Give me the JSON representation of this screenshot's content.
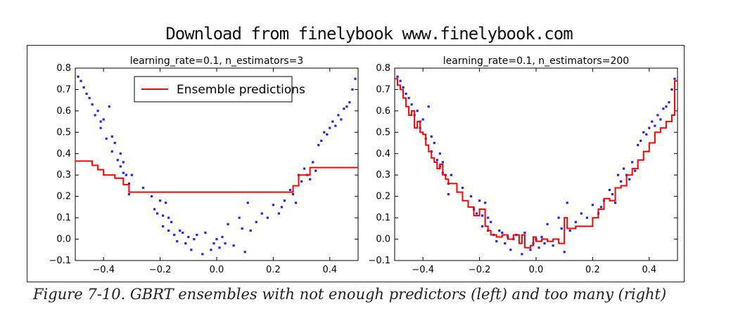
{
  "header": {
    "watermark": "Download from finelybook www.finelybook.com"
  },
  "caption": "Figure 7-10. GBRT ensembles with not enough predictors (left) and too many (right)",
  "colors": {
    "points": "#2222ff",
    "prediction": "#ff0000"
  },
  "chart_data": [
    {
      "type": "line",
      "title": "learning_rate=0.1, n_estimators=3",
      "xlabel": "",
      "ylabel": "",
      "xlim": [
        -0.5,
        0.5
      ],
      "ylim": [
        -0.1,
        0.8
      ],
      "xticks": [
        "−0.4",
        "−0.2",
        "0.0",
        "0.2",
        "0.4"
      ],
      "yticks": [
        "−0.1",
        "0.0",
        "0.1",
        "0.2",
        "0.3",
        "0.4",
        "0.5",
        "0.6",
        "0.7",
        "0.8"
      ],
      "grid": false,
      "legend": {
        "placement": "top-center",
        "entries": [
          "Ensemble predictions"
        ]
      },
      "series": [
        {
          "name": "Ensemble predictions",
          "style": "step",
          "x": [
            -0.5,
            -0.44,
            -0.44,
            -0.42,
            -0.42,
            -0.4,
            -0.4,
            -0.36,
            -0.36,
            -0.33,
            -0.33,
            -0.31,
            -0.31,
            0.27,
            0.27,
            0.29,
            0.29,
            0.33,
            0.33,
            0.5
          ],
          "y": [
            0.365,
            0.365,
            0.345,
            0.345,
            0.325,
            0.325,
            0.3,
            0.3,
            0.285,
            0.285,
            0.255,
            0.255,
            0.22,
            0.22,
            0.25,
            0.25,
            0.3,
            0.3,
            0.335,
            0.335
          ]
        }
      ],
      "points": {
        "x": [
          -0.49,
          -0.48,
          -0.47,
          -0.46,
          -0.45,
          -0.44,
          -0.43,
          -0.42,
          -0.41,
          -0.41,
          -0.4,
          -0.39,
          -0.38,
          -0.37,
          -0.37,
          -0.36,
          -0.35,
          -0.34,
          -0.34,
          -0.33,
          -0.33,
          -0.32,
          -0.31,
          -0.31,
          -0.3,
          -0.26,
          -0.23,
          -0.22,
          -0.21,
          -0.2,
          -0.19,
          -0.19,
          -0.18,
          -0.17,
          -0.17,
          -0.16,
          -0.15,
          -0.14,
          -0.13,
          -0.12,
          -0.11,
          -0.1,
          -0.09,
          -0.08,
          -0.07,
          -0.05,
          -0.04,
          -0.02,
          -0.01,
          0.0,
          0.01,
          0.02,
          0.03,
          0.04,
          0.06,
          0.08,
          0.09,
          0.1,
          0.11,
          0.12,
          0.14,
          0.16,
          0.18,
          0.2,
          0.22,
          0.23,
          0.24,
          0.26,
          0.27,
          0.28,
          0.29,
          0.3,
          0.31,
          0.32,
          0.33,
          0.34,
          0.35,
          0.36,
          0.37,
          0.38,
          0.39,
          0.4,
          0.41,
          0.42,
          0.43,
          0.44,
          0.45,
          0.46,
          0.47,
          0.48,
          0.49
        ],
        "y": [
          0.76,
          0.74,
          0.71,
          0.68,
          0.66,
          0.63,
          0.58,
          0.6,
          0.55,
          0.52,
          0.56,
          0.47,
          0.62,
          0.41,
          0.48,
          0.45,
          0.37,
          0.4,
          0.34,
          0.36,
          0.31,
          0.3,
          0.26,
          0.21,
          0.3,
          0.24,
          0.2,
          0.14,
          0.12,
          0.18,
          0.11,
          0.06,
          0.17,
          0.1,
          0.04,
          0.08,
          0.02,
          -0.01,
          0.04,
          0.03,
          -0.02,
          0.01,
          -0.05,
          0.0,
          0.02,
          -0.07,
          0.03,
          -0.05,
          -0.02,
          0.0,
          -0.04,
          0.01,
          -0.02,
          0.07,
          -0.03,
          0.1,
          0.05,
          -0.06,
          0.17,
          0.04,
          0.08,
          0.12,
          0.1,
          0.16,
          0.12,
          0.15,
          0.18,
          0.23,
          0.21,
          0.17,
          0.3,
          0.27,
          0.33,
          0.3,
          0.28,
          0.36,
          0.32,
          0.44,
          0.46,
          0.5,
          0.49,
          0.52,
          0.55,
          0.53,
          0.58,
          0.56,
          0.61,
          0.62,
          0.64,
          0.7,
          0.75
        ]
      }
    },
    {
      "type": "line",
      "title": "learning_rate=0.1, n_estimators=200",
      "xlabel": "",
      "ylabel": "",
      "xlim": [
        -0.5,
        0.5
      ],
      "ylim": [
        -0.1,
        0.8
      ],
      "xticks": [
        "−0.4",
        "−0.2",
        "0.0",
        "0.2",
        "0.4"
      ],
      "yticks": [
        "−0.1",
        "0.0",
        "0.1",
        "0.2",
        "0.3",
        "0.4",
        "0.5",
        "0.6",
        "0.7",
        "0.8"
      ],
      "grid": false,
      "legend": null,
      "series": [
        {
          "name": "",
          "style": "step",
          "x": [
            -0.5,
            -0.49,
            -0.48,
            -0.47,
            -0.46,
            -0.45,
            -0.44,
            -0.43,
            -0.42,
            -0.41,
            -0.4,
            -0.39,
            -0.38,
            -0.37,
            -0.36,
            -0.35,
            -0.34,
            -0.33,
            -0.32,
            -0.31,
            -0.3,
            -0.28,
            -0.26,
            -0.24,
            -0.22,
            -0.2,
            -0.18,
            -0.17,
            -0.16,
            -0.14,
            -0.12,
            -0.1,
            -0.08,
            -0.06,
            -0.05,
            -0.04,
            -0.02,
            -0.01,
            0.0,
            0.02,
            0.04,
            0.06,
            0.08,
            0.1,
            0.11,
            0.14,
            0.17,
            0.2,
            0.22,
            0.24,
            0.26,
            0.28,
            0.3,
            0.32,
            0.34,
            0.36,
            0.38,
            0.4,
            0.42,
            0.44,
            0.46,
            0.48,
            0.49,
            0.5
          ],
          "y": [
            0.75,
            0.72,
            0.7,
            0.66,
            0.62,
            0.58,
            0.6,
            0.52,
            0.55,
            0.5,
            0.49,
            0.44,
            0.41,
            0.38,
            0.36,
            0.33,
            0.35,
            0.3,
            0.28,
            0.26,
            0.26,
            0.22,
            0.18,
            0.15,
            0.11,
            0.14,
            0.06,
            0.04,
            0.02,
            0.01,
            0.02,
            0.0,
            0.02,
            -0.02,
            0.02,
            -0.04,
            -0.03,
            0.01,
            -0.01,
            0.0,
            -0.01,
            0.0,
            -0.02,
            0.1,
            0.05,
            0.06,
            0.06,
            0.1,
            0.14,
            0.19,
            0.18,
            0.24,
            0.25,
            0.3,
            0.33,
            0.37,
            0.41,
            0.45,
            0.5,
            0.52,
            0.55,
            0.58,
            0.74,
            0.74
          ]
        }
      ],
      "points": {
        "x": [
          -0.49,
          -0.48,
          -0.47,
          -0.46,
          -0.45,
          -0.44,
          -0.43,
          -0.42,
          -0.41,
          -0.41,
          -0.4,
          -0.39,
          -0.38,
          -0.37,
          -0.37,
          -0.36,
          -0.35,
          -0.34,
          -0.34,
          -0.33,
          -0.33,
          -0.32,
          -0.31,
          -0.31,
          -0.3,
          -0.26,
          -0.23,
          -0.22,
          -0.21,
          -0.2,
          -0.19,
          -0.19,
          -0.18,
          -0.17,
          -0.17,
          -0.16,
          -0.15,
          -0.14,
          -0.13,
          -0.12,
          -0.11,
          -0.1,
          -0.09,
          -0.08,
          -0.07,
          -0.05,
          -0.04,
          -0.02,
          -0.01,
          0.0,
          0.01,
          0.02,
          0.03,
          0.04,
          0.06,
          0.08,
          0.09,
          0.1,
          0.11,
          0.12,
          0.14,
          0.16,
          0.18,
          0.2,
          0.22,
          0.23,
          0.24,
          0.26,
          0.27,
          0.28,
          0.29,
          0.3,
          0.31,
          0.32,
          0.33,
          0.34,
          0.35,
          0.36,
          0.37,
          0.38,
          0.39,
          0.4,
          0.41,
          0.42,
          0.43,
          0.44,
          0.45,
          0.46,
          0.47,
          0.48,
          0.49
        ],
        "y": [
          0.76,
          0.74,
          0.71,
          0.68,
          0.66,
          0.63,
          0.58,
          0.6,
          0.55,
          0.52,
          0.56,
          0.47,
          0.62,
          0.41,
          0.48,
          0.45,
          0.37,
          0.4,
          0.34,
          0.36,
          0.31,
          0.3,
          0.26,
          0.21,
          0.3,
          0.24,
          0.2,
          0.14,
          0.12,
          0.18,
          0.11,
          0.06,
          0.17,
          0.1,
          0.04,
          0.08,
          0.02,
          -0.01,
          0.04,
          0.03,
          -0.02,
          0.01,
          -0.05,
          0.0,
          0.02,
          -0.07,
          0.03,
          -0.05,
          -0.02,
          0.0,
          -0.04,
          0.01,
          -0.02,
          0.07,
          -0.03,
          0.1,
          0.05,
          -0.06,
          0.17,
          0.04,
          0.08,
          0.12,
          0.1,
          0.16,
          0.12,
          0.15,
          0.18,
          0.23,
          0.21,
          0.17,
          0.3,
          0.27,
          0.33,
          0.3,
          0.28,
          0.36,
          0.32,
          0.44,
          0.46,
          0.5,
          0.49,
          0.52,
          0.55,
          0.53,
          0.58,
          0.56,
          0.61,
          0.62,
          0.64,
          0.7,
          0.75
        ]
      }
    }
  ]
}
